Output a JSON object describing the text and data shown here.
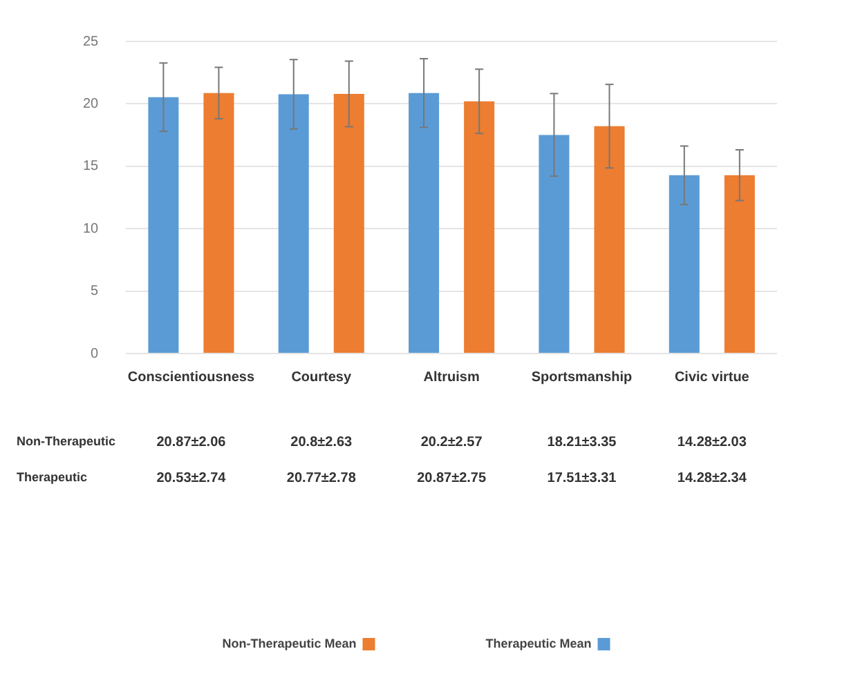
{
  "chart_data": {
    "type": "bar",
    "categories": [
      "Conscientiousness",
      "Courtesy",
      "Altruism",
      "Sportsmanship",
      "Civic virtue"
    ],
    "series": [
      {
        "name": "Therapeutic Mean",
        "color": "#5b9bd5",
        "values": [
          20.53,
          20.77,
          20.87,
          17.51,
          14.28
        ],
        "errors": [
          2.74,
          2.78,
          2.75,
          3.31,
          2.34
        ],
        "value_labels": [
          "20.53±2.74",
          "20.77±2.78",
          "20.87±2.75",
          "17.51±3.31",
          "14.28±2.34"
        ]
      },
      {
        "name": "Non-Therapeutic Mean",
        "color": "#ed7d31",
        "values": [
          20.87,
          20.8,
          20.2,
          18.21,
          14.28
        ],
        "errors": [
          2.06,
          2.63,
          2.57,
          3.35,
          2.03
        ],
        "value_labels": [
          "20.87±2.06",
          "20.8±2.63",
          "20.2±2.57",
          "18.21±3.35",
          "14.28±2.03"
        ]
      }
    ],
    "annotations": [
      "Therapeutic",
      "Non-Therapeutic"
    ],
    "ylim": [
      0,
      25
    ],
    "yticks": [
      0,
      5,
      10,
      15,
      20,
      25
    ],
    "grid": "y",
    "legend": "bottom"
  }
}
